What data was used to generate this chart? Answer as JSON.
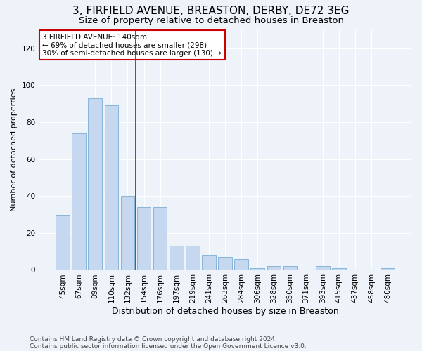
{
  "title": "3, FIRFIELD AVENUE, BREASTON, DERBY, DE72 3EG",
  "subtitle": "Size of property relative to detached houses in Breaston",
  "xlabel": "Distribution of detached houses by size in Breaston",
  "ylabel": "Number of detached properties",
  "categories": [
    "45sqm",
    "67sqm",
    "89sqm",
    "110sqm",
    "132sqm",
    "154sqm",
    "176sqm",
    "197sqm",
    "219sqm",
    "241sqm",
    "263sqm",
    "284sqm",
    "306sqm",
    "328sqm",
    "350sqm",
    "371sqm",
    "393sqm",
    "415sqm",
    "437sqm",
    "458sqm",
    "480sqm"
  ],
  "values": [
    30,
    74,
    93,
    89,
    40,
    34,
    34,
    13,
    13,
    8,
    7,
    6,
    1,
    2,
    2,
    0,
    2,
    1,
    0,
    0,
    1
  ],
  "bar_color": "#c5d8ef",
  "bar_edge_color": "#7bafd4",
  "background_color": "#eef2f9",
  "grid_color": "#ffffff",
  "ylim": [
    0,
    130
  ],
  "yticks": [
    0,
    20,
    40,
    60,
    80,
    100,
    120
  ],
  "property_label": "3 FIRFIELD AVENUE: 140sqm",
  "annotation_line1": "← 69% of detached houses are smaller (298)",
  "annotation_line2": "30% of semi-detached houses are larger (130) →",
  "vline_position": 4.5,
  "footnote1": "Contains HM Land Registry data © Crown copyright and database right 2024.",
  "footnote2": "Contains public sector information licensed under the Open Government Licence v3.0.",
  "title_fontsize": 11,
  "subtitle_fontsize": 9.5,
  "annotation_box_color": "#ffffff",
  "annotation_box_edge": "#cc0000",
  "vline_color": "#cc0000",
  "ylabel_fontsize": 8,
  "xlabel_fontsize": 9,
  "tick_fontsize": 7.5,
  "footnote_fontsize": 6.5
}
